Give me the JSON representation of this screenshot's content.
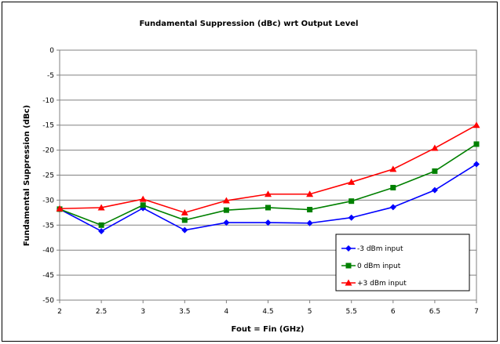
{
  "chart_data": {
    "type": "line",
    "title": "Fundamental Suppression (dBc) wrt Output Level",
    "xlabel": "Fout = Fin (GHz)",
    "ylabel": "Fundamental Suppression (dBc)",
    "x": [
      2,
      2.5,
      3,
      3.5,
      4,
      4.5,
      5,
      5.5,
      6,
      6.5,
      7
    ],
    "x_tick_labels": [
      "2",
      "2.5",
      "3",
      "3.5",
      "4",
      "4.5",
      "5",
      "5.5",
      "6",
      "6.5",
      "7"
    ],
    "y_tick_labels": [
      "0",
      "-5",
      "-10",
      "-15",
      "-20",
      "-25",
      "-30",
      "-35",
      "-40",
      "-45",
      "-50"
    ],
    "xlim": [
      2,
      7
    ],
    "ylim": [
      -50,
      0
    ],
    "grid": "horizontal",
    "legend_position": "bottom-right",
    "series": [
      {
        "name": "-3 dBm input",
        "color": "#0000ff",
        "marker": "diamond",
        "values": [
          -31.8,
          -36.2,
          -31.6,
          -36.0,
          -34.5,
          -34.5,
          -34.6,
          -33.5,
          -31.4,
          -28.0,
          -22.8
        ]
      },
      {
        "name": "0 dBm input",
        "color": "#008000",
        "marker": "square",
        "values": [
          -31.8,
          -35.0,
          -31.0,
          -34.0,
          -32.0,
          -31.5,
          -31.9,
          -30.2,
          -27.5,
          -24.2,
          -18.8
        ]
      },
      {
        "name": "+3 dBm input",
        "color": "#ff0000",
        "marker": "triangle",
        "values": [
          -31.7,
          -31.5,
          -29.8,
          -32.5,
          -30.1,
          -28.8,
          -28.8,
          -26.4,
          -23.8,
          -19.6,
          -15.0
        ]
      }
    ]
  }
}
